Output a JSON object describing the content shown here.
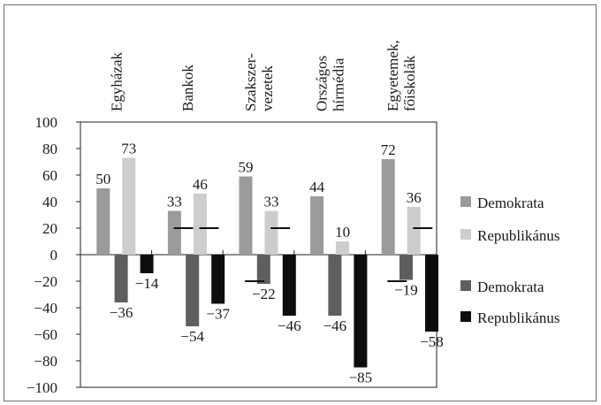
{
  "chart_data": {
    "type": "bar",
    "categories": [
      [
        "Egyházak"
      ],
      [
        "Bankok"
      ],
      [
        "Szakszer-",
        "vezetek"
      ],
      [
        "Országos",
        "hírmédia"
      ],
      [
        "Egyetemek,",
        "főiskolák"
      ]
    ],
    "series": [
      {
        "name": "Demokrata",
        "color": "#9b9b9b",
        "values": [
          50,
          33,
          59,
          44,
          72
        ]
      },
      {
        "name": "Republikánus",
        "color": "#cdcdcd",
        "values": [
          73,
          46,
          33,
          10,
          36
        ]
      },
      {
        "name": "Demokrata",
        "color": "#5e5e5e",
        "values": [
          -36,
          -54,
          -22,
          -46,
          -19
        ]
      },
      {
        "name": "Republikánus",
        "color": "#0d0d0d",
        "values": [
          -14,
          -37,
          -46,
          -85,
          -58
        ]
      }
    ],
    "net_markers": [
      [
        null,
        null
      ],
      [
        20,
        20
      ],
      [
        -20,
        20
      ],
      [
        null,
        null
      ],
      [
        -20,
        20
      ]
    ],
    "ylim": [
      -100,
      100
    ],
    "yticks": [
      -100,
      -80,
      -60,
      -40,
      -20,
      0,
      20,
      40,
      60,
      80,
      100
    ],
    "ytick_labels": [
      "−100",
      "−80",
      "−60",
      "−40",
      "−20",
      "0",
      "20",
      "40",
      "60",
      "80",
      "100"
    ],
    "legend_position": "right",
    "grid": false
  }
}
